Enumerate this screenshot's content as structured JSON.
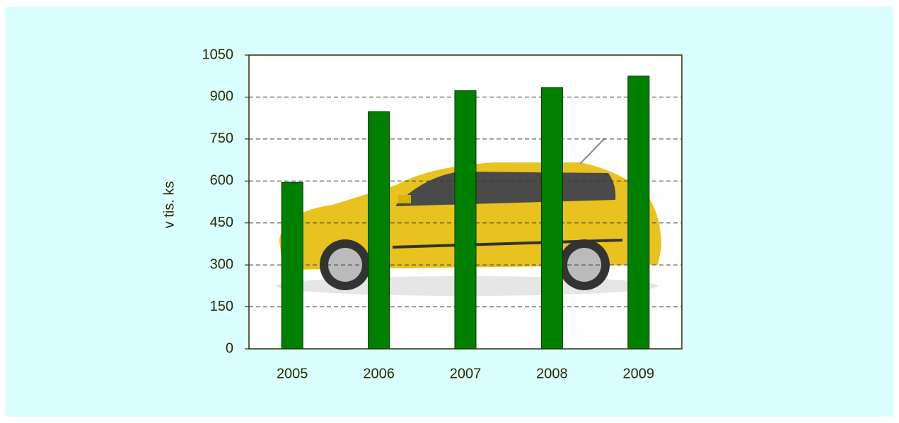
{
  "chart_data": {
    "type": "bar",
    "y_label": "v tis. ks",
    "categories": [
      "2005",
      "2006",
      "2007",
      "2008",
      "2009"
    ],
    "values": [
      595,
      848,
      923,
      934,
      975
    ],
    "color": "#008000",
    "ylim": [
      0,
      1050
    ],
    "yticks": [
      0,
      150,
      300,
      450,
      600,
      750,
      900,
      1050
    ],
    "grid": true
  }
}
